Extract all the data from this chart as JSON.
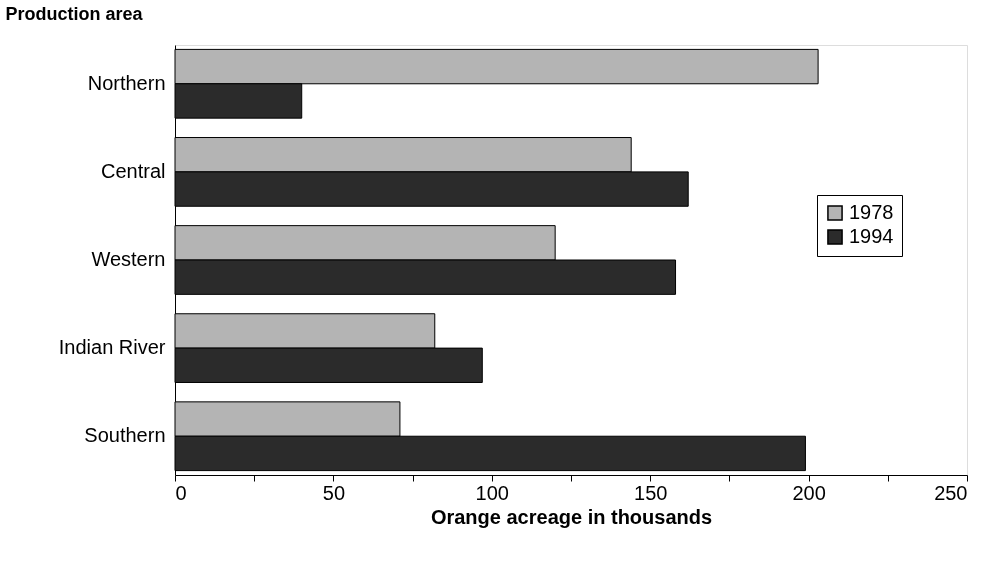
{
  "chart_data": {
    "type": "bar",
    "orientation": "horizontal",
    "ylabel": "Production area",
    "xlabel": "Orange acreage in thousands",
    "categories": [
      "Northern",
      "Central",
      "Western",
      "Indian River",
      "Southern"
    ],
    "series": [
      {
        "name": "1978",
        "color": "#b4b4b4",
        "values": [
          203,
          144,
          120,
          82,
          71
        ]
      },
      {
        "name": "1994",
        "color": "#2b2b2b",
        "values": [
          40,
          162,
          158,
          97,
          199
        ]
      }
    ],
    "xlim": [
      0,
      250
    ],
    "xticks": [
      0,
      {
        "value": 25,
        "label": null
      },
      50,
      {
        "value": 75,
        "label": null
      },
      100,
      {
        "value": 125,
        "label": null
      },
      150,
      {
        "value": 175,
        "label": null
      },
      200,
      {
        "value": 225,
        "label": null
      },
      250
    ],
    "grid": false,
    "legend": "right"
  }
}
